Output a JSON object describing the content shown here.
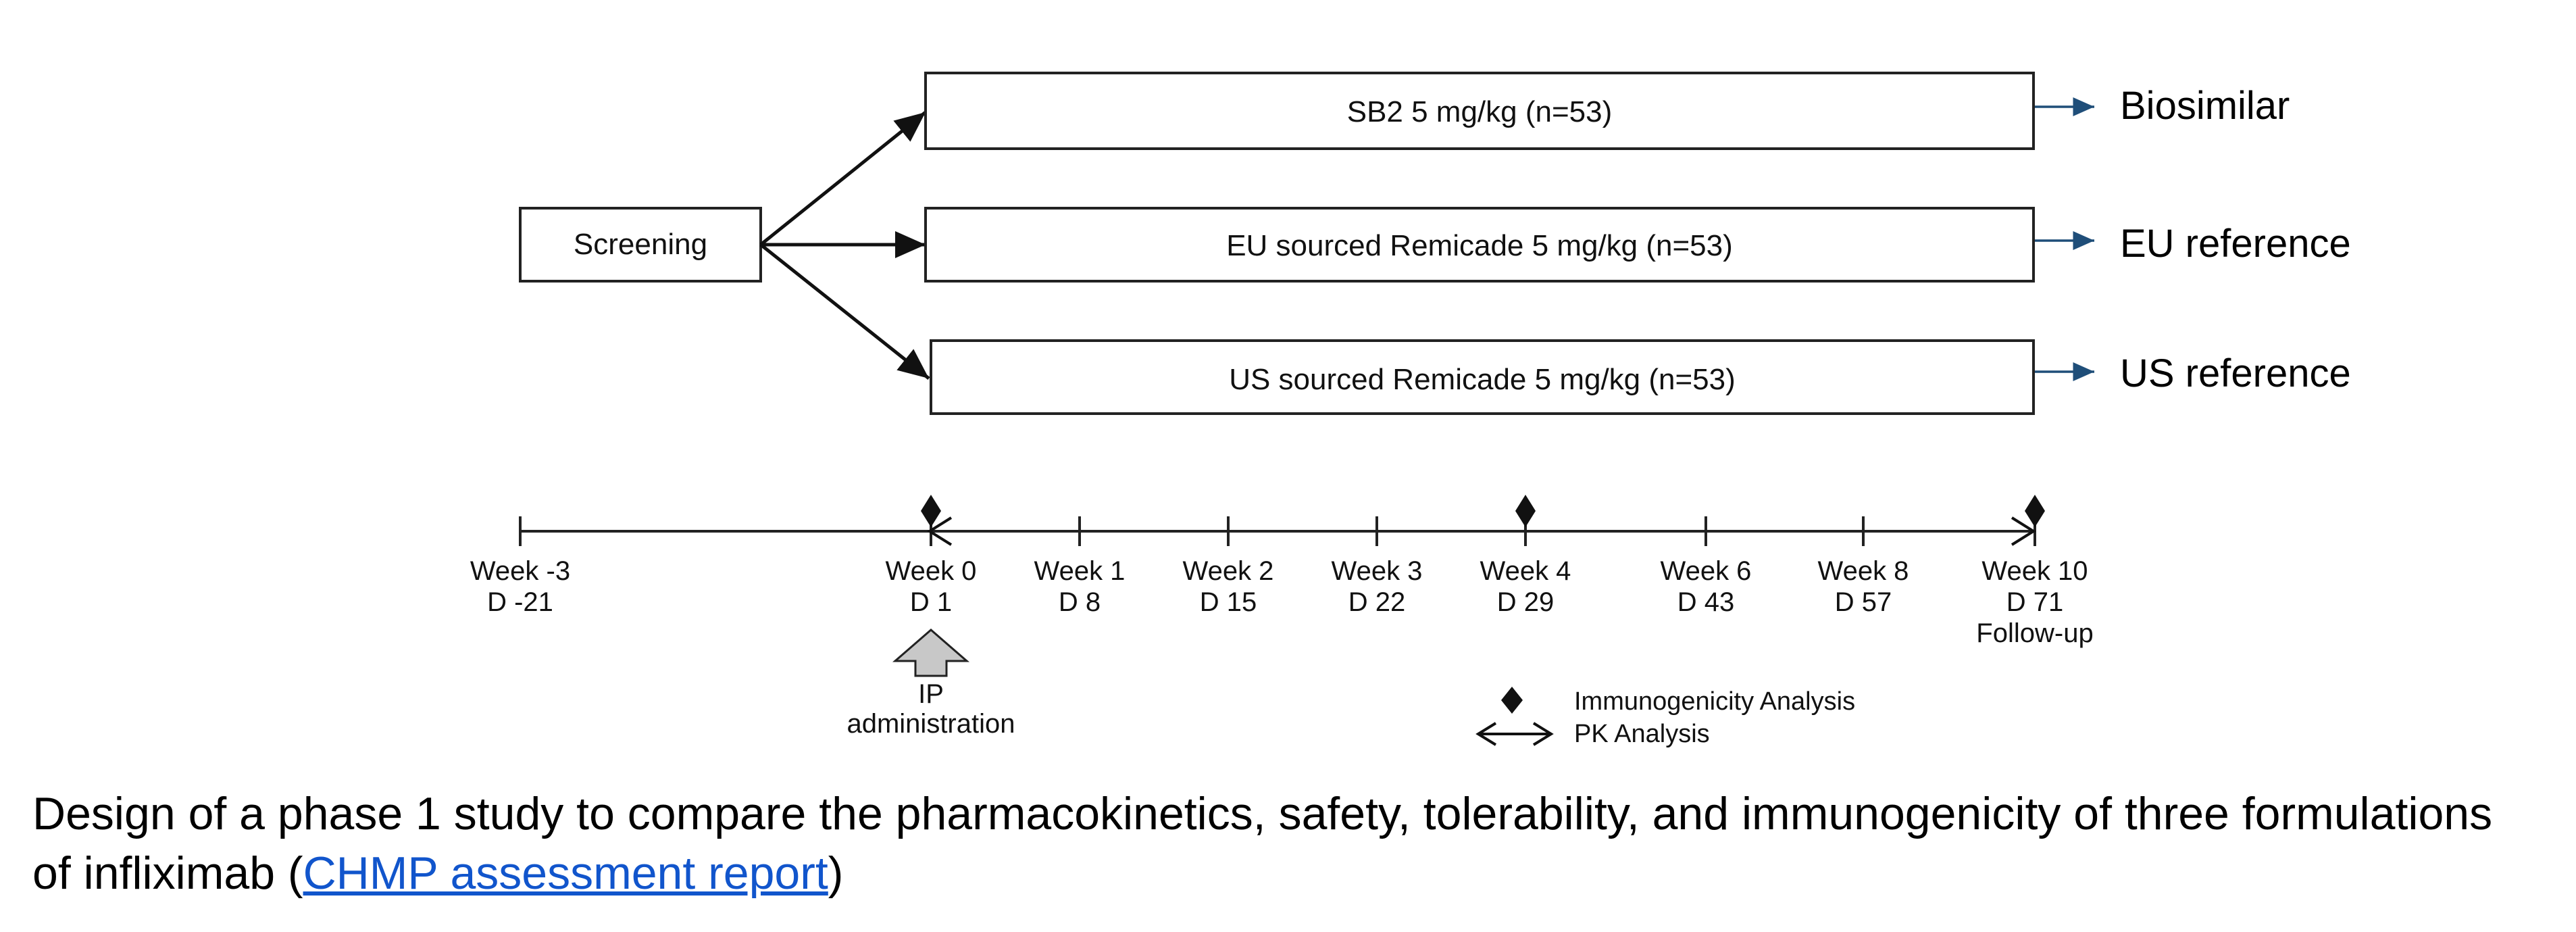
{
  "screening": {
    "label": "Screening"
  },
  "arms": [
    {
      "label": "SB2 5 mg/kg (n=53)",
      "outcome": "Biosimilar"
    },
    {
      "label": "EU sourced Remicade 5 mg/kg (n=53)",
      "outcome": "EU reference"
    },
    {
      "label": "US sourced Remicade 5 mg/kg (n=53)",
      "outcome": "US reference"
    }
  ],
  "timeline": {
    "ticks": [
      {
        "week": "Week -3",
        "day": "D -21",
        "note": ""
      },
      {
        "week": "Week 0",
        "day": "D 1",
        "note": ""
      },
      {
        "week": "Week 1",
        "day": "D 8",
        "note": ""
      },
      {
        "week": "Week 2",
        "day": "D 15",
        "note": ""
      },
      {
        "week": "Week 3",
        "day": "D 22",
        "note": ""
      },
      {
        "week": "Week 4",
        "day": "D 29",
        "note": ""
      },
      {
        "week": "Week 6",
        "day": "D 43",
        "note": ""
      },
      {
        "week": "Week 8",
        "day": "D 57",
        "note": ""
      },
      {
        "week": "Week 10",
        "day": "D 71",
        "note": "Follow-up"
      }
    ],
    "immunogenicity_at": [
      "Week 0",
      "Week 4",
      "Week 10"
    ],
    "ip_label_line1": "IP",
    "ip_label_line2": "administration"
  },
  "legend": {
    "immunogenicity": "Immunogenicity Analysis",
    "pk": "PK Analysis"
  },
  "colors": {
    "outcome_arrow": "#1f4e79",
    "link": "#1155cc",
    "ip_arrow_fill": "#c8c8c8"
  },
  "caption": {
    "text": "Design of a phase 1 study to compare the pharmacokinetics, safety, tolerability, and immunogenicity of three formulations of infliximab (",
    "link": "CHMP assessment report",
    "close": ")"
  }
}
